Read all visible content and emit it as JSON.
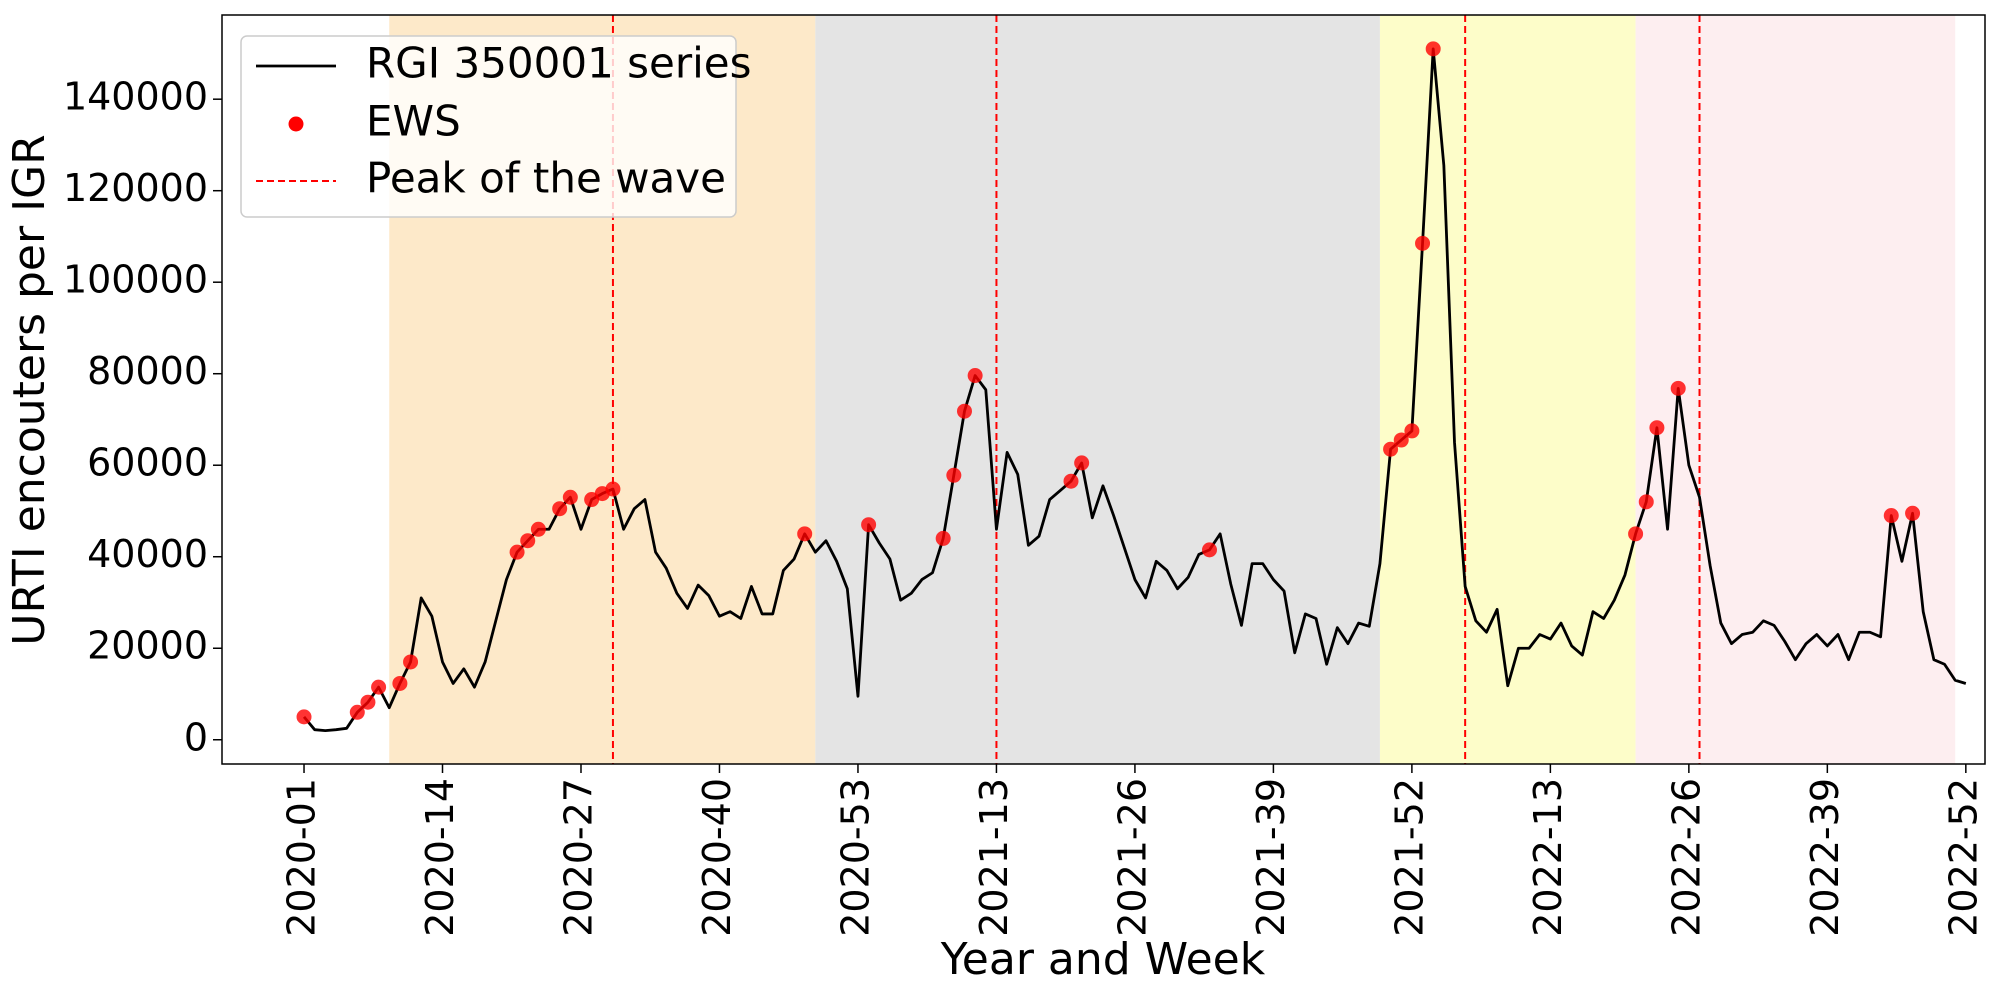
{
  "chart_data": {
    "type": "line",
    "xlabel": "Year and Week",
    "ylabel": "URTI encouters per IGR",
    "categories": [
      "2020-01",
      null,
      null,
      null,
      null,
      null,
      null,
      null,
      null,
      null,
      null,
      null,
      null,
      "2020-14",
      null,
      null,
      null,
      null,
      null,
      null,
      null,
      null,
      null,
      null,
      null,
      null,
      "2020-27",
      null,
      null,
      null,
      null,
      null,
      null,
      null,
      null,
      null,
      null,
      null,
      null,
      "2020-40",
      null,
      null,
      null,
      null,
      null,
      null,
      null,
      null,
      null,
      null,
      null,
      null,
      "2020-53",
      null,
      null,
      null,
      null,
      null,
      null,
      null,
      null,
      null,
      null,
      null,
      null,
      "2021-13",
      null,
      null,
      null,
      null,
      null,
      null,
      null,
      null,
      null,
      null,
      null,
      null,
      "2021-26",
      null,
      null,
      null,
      null,
      null,
      null,
      null,
      null,
      null,
      null,
      null,
      null,
      "2021-39",
      null,
      null,
      null,
      null,
      null,
      null,
      null,
      null,
      null,
      null,
      null,
      null,
      "2021-52",
      null,
      null,
      null,
      null,
      null,
      null,
      null,
      null,
      null,
      null,
      null,
      null,
      "2022-13",
      null,
      null,
      null,
      null,
      null,
      null,
      null,
      null,
      null,
      null,
      null,
      null,
      "2022-26",
      null,
      null,
      null,
      null,
      null,
      null,
      null,
      null,
      null,
      null,
      null,
      null,
      "2022-39",
      null,
      null,
      null,
      null,
      null,
      null,
      null,
      null,
      null,
      null,
      null,
      null,
      "2022-52"
    ],
    "series": [
      {
        "name": "RGI 350001 series",
        "color": "#000000",
        "values": [
          5000,
          2200,
          2000,
          2200,
          2500,
          6000,
          8200,
          11500,
          7000,
          12300,
          17000,
          31000,
          27000,
          17000,
          12300,
          15500,
          11500,
          17000,
          26000,
          35000,
          41000,
          43500,
          46000,
          46000,
          50500,
          53000,
          46000,
          52500,
          53800,
          54800,
          46000,
          50500,
          52500,
          41000,
          37500,
          32000,
          28700,
          33800,
          31500,
          27000,
          28000,
          26500,
          33500,
          27500,
          27500,
          37000,
          39500,
          45000,
          41000,
          43500,
          39000,
          33000,
          9500,
          47000,
          43000,
          39500,
          30500,
          32000,
          35000,
          36500,
          44000,
          57800,
          71800,
          79600,
          76500,
          46000,
          62800,
          58000,
          42500,
          44500,
          52500,
          54500,
          56500,
          60500,
          48500,
          55500,
          49000,
          42000,
          35000,
          31000,
          39000,
          37000,
          33000,
          35500,
          40500,
          41500,
          45000,
          34000,
          25000,
          38500,
          38500,
          35000,
          32500,
          19000,
          27500,
          26500,
          16500,
          24500,
          21000,
          25500,
          24800,
          38500,
          63500,
          65500,
          67500,
          108500,
          151000,
          125500,
          65000,
          33500,
          26000,
          23500,
          28500,
          11800,
          20000,
          20000,
          23000,
          22000,
          25500,
          20500,
          18500,
          28000,
          26500,
          30500,
          36000,
          45000,
          52000,
          68200,
          46000,
          76800,
          60000,
          53000,
          38000,
          25500,
          21000,
          23000,
          23500,
          26000,
          25000,
          21500,
          17500,
          21000,
          23000,
          20500,
          23000,
          17500,
          23500,
          23500,
          22500,
          49000,
          39000,
          49500,
          28000,
          17500,
          16500,
          13000,
          12300
        ]
      },
      {
        "name": "EWS",
        "color": "#ff0000",
        "marker": "dot",
        "values": [
          5000,
          null,
          null,
          null,
          null,
          6000,
          8200,
          11500,
          null,
          12300,
          17000,
          null,
          null,
          null,
          null,
          null,
          null,
          null,
          null,
          null,
          41000,
          43500,
          46000,
          null,
          50500,
          53000,
          null,
          52500,
          53800,
          54800,
          null,
          null,
          null,
          null,
          null,
          null,
          null,
          null,
          null,
          null,
          null,
          null,
          null,
          null,
          null,
          null,
          null,
          45000,
          null,
          null,
          null,
          null,
          null,
          47000,
          null,
          null,
          null,
          null,
          null,
          null,
          44000,
          57800,
          71800,
          79600,
          null,
          null,
          null,
          null,
          null,
          null,
          null,
          null,
          56500,
          60500,
          null,
          null,
          null,
          null,
          null,
          null,
          null,
          null,
          null,
          null,
          null,
          41500,
          null,
          null,
          null,
          null,
          null,
          null,
          null,
          null,
          null,
          null,
          null,
          null,
          null,
          null,
          null,
          null,
          63500,
          65500,
          67500,
          108500,
          151000,
          null,
          null,
          null,
          null,
          null,
          null,
          null,
          null,
          null,
          null,
          null,
          null,
          null,
          null,
          null,
          null,
          null,
          null,
          45000,
          52000,
          68200,
          null,
          76800,
          null,
          null,
          null,
          null,
          null,
          null,
          null,
          null,
          null,
          null,
          null,
          null,
          null,
          null,
          null,
          null,
          null,
          null,
          null,
          49000,
          null,
          49500,
          null,
          null,
          null,
          null,
          null
        ]
      }
    ],
    "peak_name": "Peak of the wave",
    "peak_color": "#ff0000",
    "peaks": [
      29,
      65,
      109,
      131
    ],
    "bands": [
      {
        "from": 8,
        "to": 48,
        "color": "#fde9c9"
      },
      {
        "from": 48,
        "to": 101,
        "color": "#e4e4e4"
      },
      {
        "from": 101,
        "to": 125,
        "color": "#fdfdc9"
      },
      {
        "from": 125,
        "to": 155,
        "color": "#fdeef0"
      }
    ],
    "xlim": [
      -7.7,
      157.8
    ],
    "ylim": [
      -5300,
      158400
    ],
    "yticks": [
      0,
      20000,
      40000,
      60000,
      80000,
      100000,
      120000,
      140000
    ],
    "legend": "upper left"
  }
}
